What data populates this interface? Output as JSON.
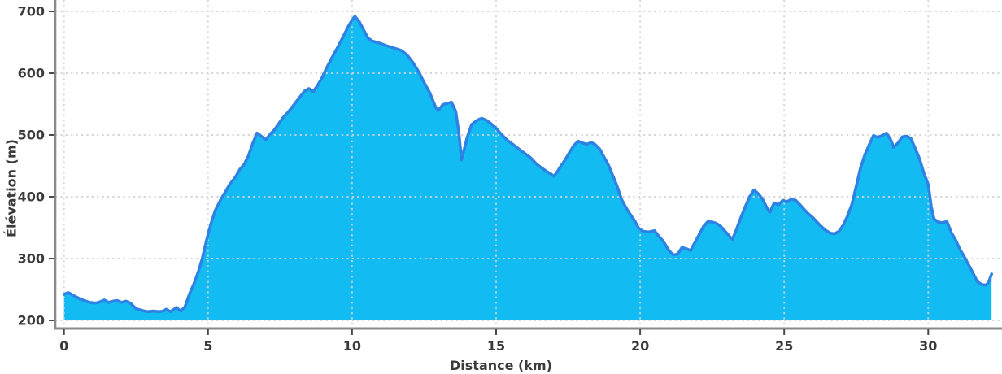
{
  "figure": {
    "background": "#ffffff",
    "colors": {
      "area_fill": "#12bcf3",
      "line": "#2e82e4",
      "grid": "#d2d2d2",
      "spine": "#8a8a8a",
      "tick_mark": "#4a4a4a",
      "tick_text": "#3b3b3b"
    }
  },
  "chart_data": {
    "type": "area",
    "title": "",
    "xlabel": "Distance (km)",
    "ylabel": "Élévation (m)",
    "x_ticks": [
      0,
      5,
      10,
      15,
      20,
      25,
      30
    ],
    "y_ticks": [
      200,
      300,
      400,
      500,
      600,
      700
    ],
    "xlim": [
      -0.302,
      32.56
    ],
    "ylim": [
      186.8,
      718.4
    ],
    "baseline": 200,
    "grid": "dotted",
    "legend": "none",
    "x": [
      0,
      0.15,
      0.3,
      0.5,
      0.7,
      0.9,
      1.1,
      1.25,
      1.4,
      1.55,
      1.7,
      1.85,
      2.0,
      2.15,
      2.3,
      2.5,
      2.7,
      2.9,
      3.1,
      3.3,
      3.45,
      3.55,
      3.7,
      3.9,
      4.05,
      4.2,
      4.35,
      4.5,
      4.65,
      4.8,
      4.95,
      5.1,
      5.25,
      5.45,
      5.6,
      5.75,
      5.95,
      6.1,
      6.25,
      6.4,
      6.55,
      6.7,
      6.85,
      7.0,
      7.15,
      7.3,
      7.45,
      7.6,
      7.8,
      8.0,
      8.2,
      8.35,
      8.5,
      8.65,
      8.8,
      8.95,
      9.1,
      9.3,
      9.5,
      9.7,
      9.85,
      10.0,
      10.1,
      10.25,
      10.4,
      10.55,
      10.7,
      10.85,
      11.0,
      11.15,
      11.3,
      11.5,
      11.7,
      11.9,
      12.1,
      12.3,
      12.5,
      12.7,
      12.9,
      13.0,
      13.15,
      13.3,
      13.45,
      13.6,
      13.7,
      13.8,
      13.9,
      14.0,
      14.15,
      14.35,
      14.5,
      14.65,
      14.8,
      15.0,
      15.2,
      15.4,
      15.6,
      15.8,
      16.0,
      16.2,
      16.4,
      16.6,
      16.75,
      16.9,
      17.0,
      17.1,
      17.25,
      17.4,
      17.55,
      17.7,
      17.85,
      18.0,
      18.15,
      18.3,
      18.45,
      18.6,
      18.75,
      18.9,
      19.05,
      19.2,
      19.35,
      19.5,
      19.65,
      19.8,
      19.95,
      20.1,
      20.3,
      20.5,
      20.65,
      20.8,
      21.0,
      21.15,
      21.3,
      21.45,
      21.6,
      21.75,
      21.9,
      22.05,
      22.2,
      22.35,
      22.5,
      22.65,
      22.8,
      22.95,
      23.1,
      23.2,
      23.35,
      23.5,
      23.65,
      23.8,
      23.95,
      24.1,
      24.25,
      24.4,
      24.5,
      24.65,
      24.8,
      24.95,
      25.1,
      25.25,
      25.4,
      25.55,
      25.7,
      25.85,
      26.0,
      26.2,
      26.4,
      26.6,
      26.75,
      26.9,
      27.05,
      27.2,
      27.35,
      27.5,
      27.65,
      27.8,
      27.95,
      28.1,
      28.25,
      28.4,
      28.55,
      28.7,
      28.8,
      28.95,
      29.1,
      29.25,
      29.4,
      29.55,
      29.7,
      29.85,
      30.0,
      30.1,
      30.2,
      30.35,
      30.5,
      30.65,
      30.8,
      30.95,
      31.1,
      31.25,
      31.4,
      31.55,
      31.7,
      31.85,
      32.0,
      32.1,
      32.2
    ],
    "elevation": [
      242,
      245,
      241,
      236,
      232,
      229,
      228,
      230,
      233,
      229,
      231,
      232,
      229,
      231,
      228,
      219,
      216,
      214,
      215,
      214,
      215,
      218,
      214,
      221,
      215,
      222,
      242,
      258,
      277,
      300,
      330,
      356,
      378,
      396,
      408,
      420,
      432,
      444,
      452,
      466,
      486,
      503,
      498,
      492,
      501,
      508,
      518,
      528,
      538,
      550,
      562,
      571,
      575,
      570,
      580,
      592,
      607,
      625,
      642,
      660,
      674,
      686,
      692,
      683,
      670,
      657,
      652,
      650,
      648,
      645,
      643,
      640,
      637,
      630,
      618,
      603,
      585,
      568,
      545,
      540,
      549,
      551,
      553,
      538,
      505,
      460,
      478,
      497,
      517,
      524,
      527,
      524,
      519,
      511,
      500,
      491,
      484,
      477,
      470,
      463,
      453,
      446,
      441,
      437,
      433,
      439,
      450,
      460,
      472,
      483,
      490,
      487,
      485,
      488,
      484,
      477,
      464,
      451,
      434,
      417,
      396,
      383,
      372,
      362,
      349,
      344,
      343,
      345,
      336,
      328,
      313,
      306,
      307,
      318,
      316,
      313,
      326,
      339,
      352,
      360,
      359,
      357,
      352,
      344,
      336,
      331,
      348,
      367,
      384,
      400,
      411,
      405,
      396,
      382,
      375,
      390,
      387,
      394,
      392,
      396,
      394,
      387,
      379,
      372,
      366,
      356,
      347,
      341,
      340,
      344,
      354,
      369,
      388,
      417,
      447,
      468,
      484,
      499,
      496,
      499,
      503,
      492,
      480,
      487,
      497,
      498,
      494,
      478,
      461,
      438,
      420,
      385,
      364,
      359,
      358,
      360,
      342,
      330,
      315,
      303,
      290,
      277,
      263,
      258,
      257,
      262,
      275
    ]
  }
}
